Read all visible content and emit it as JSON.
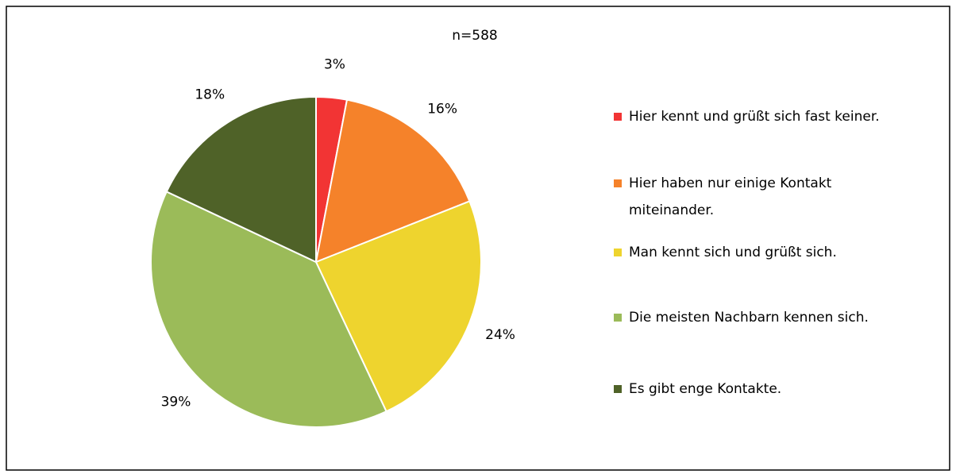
{
  "chart_data": {
    "type": "pie",
    "subtitle": "n=588",
    "categories": [
      "Hier kennt und grüßt sich fast keiner.",
      "Hier haben nur einige Kontakt miteinander.",
      "Man kennt sich und grüßt sich.",
      "Die meisten Nachbarn kennen sich.",
      "Es gibt enge Kontakte."
    ],
    "values": [
      3,
      16,
      24,
      39,
      18
    ],
    "value_labels": [
      "3%",
      "16%",
      "24%",
      "39%",
      "18%"
    ],
    "colors": [
      "#f23434",
      "#f5822a",
      "#eed42e",
      "#9bbb59",
      "#4f6228"
    ],
    "legend": "right"
  }
}
